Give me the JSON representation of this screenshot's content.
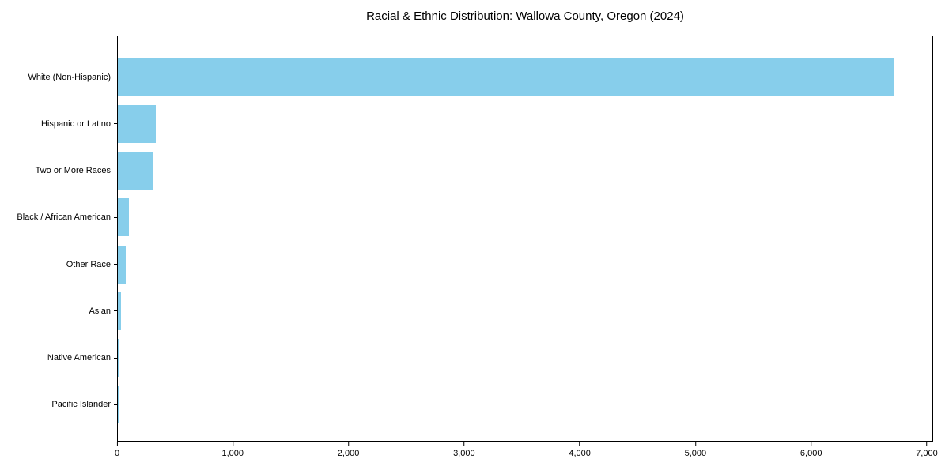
{
  "chart_data": {
    "type": "bar",
    "orientation": "horizontal",
    "title": "Racial & Ethnic Distribution: Wallowa County, Oregon (2024)",
    "categories": [
      "White (Non-Hispanic)",
      "Hispanic or Latino",
      "Two or More Races",
      "Black / African American",
      "Other Race",
      "Asian",
      "Native American",
      "Pacific Islander"
    ],
    "values": [
      6720,
      330,
      310,
      95,
      70,
      30,
      10,
      2
    ],
    "xlabel": "",
    "ylabel": "",
    "xlim": [
      0,
      7055
    ],
    "xticks": [
      0,
      1000,
      2000,
      3000,
      4000,
      5000,
      6000,
      7000
    ],
    "xtick_labels": [
      "0",
      "1,000",
      "2,000",
      "3,000",
      "4,000",
      "5,000",
      "6,000",
      "7,000"
    ],
    "grid": false,
    "legend": false
  },
  "colors": {
    "bar": "#87CEEB",
    "axis": "#000000",
    "text": "#000000",
    "background": "#ffffff"
  }
}
